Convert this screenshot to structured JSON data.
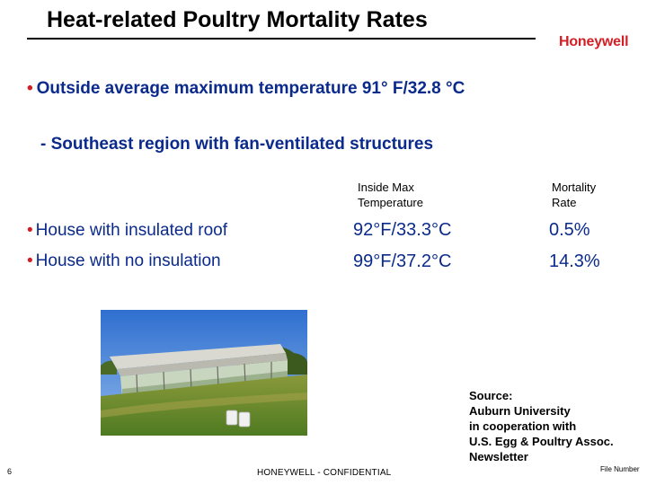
{
  "slide": {
    "title": "Heat-related Poultry Mortality Rates",
    "logo_text": "Honeywell",
    "bullet_dot": "•",
    "main_bullet": "Outside average maximum temperature 91° F/32.8 °C",
    "sub_bullet": "- Southeast region with fan-ventilated structures",
    "table": {
      "headers": [
        [
          "Inside Max",
          "Temperature"
        ],
        [
          "Mortality",
          "Rate"
        ]
      ],
      "rows": [
        {
          "label": "House with insulated roof",
          "temperature": "92°F/33.3°C",
          "mortality": "0.5%"
        },
        {
          "label": "House with no insulation",
          "temperature": "99°F/37.2°C",
          "mortality": "14.3%"
        }
      ]
    },
    "source_lines": [
      "Source:",
      "Auburn University",
      "in cooperation  with",
      "U.S. Egg & Poultry Assoc.",
      "Newsletter"
    ],
    "footer": {
      "page_number": "6",
      "confidential": "HONEYWELL - CONFIDENTIAL",
      "file_number": "File Number"
    },
    "colors": {
      "accent_red": "#d31e25",
      "text_blue": "#0a2a8c"
    }
  }
}
